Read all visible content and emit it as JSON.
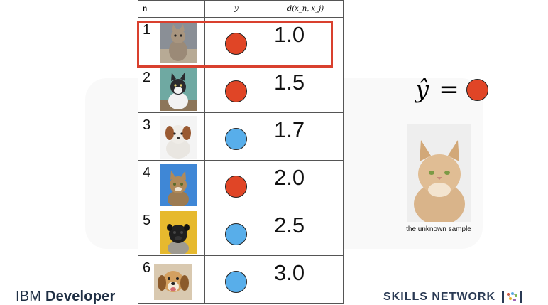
{
  "table": {
    "headers": {
      "n": "n",
      "y": "y",
      "d": "d(x_n, x_j)"
    },
    "rows": [
      {
        "n": "1",
        "image": "cat-icon",
        "label_color": "#e04526",
        "distance": "1.0"
      },
      {
        "n": "2",
        "image": "cat-icon",
        "label_color": "#e04526",
        "distance": "1.5"
      },
      {
        "n": "3",
        "image": "dog-icon",
        "label_color": "#58aeea",
        "distance": "1.7"
      },
      {
        "n": "4",
        "image": "cat-icon",
        "label_color": "#e04526",
        "distance": "2.0"
      },
      {
        "n": "5",
        "image": "dog-icon",
        "label_color": "#58aeea",
        "distance": "2.5"
      },
      {
        "n": "6",
        "image": "dog-icon",
        "label_color": "#58aeea",
        "distance": "3.0"
      }
    ]
  },
  "highlight_color": "#d9402e",
  "prediction": {
    "symbol": "ŷ",
    "equals": "=",
    "color": "#e04526"
  },
  "sample": {
    "image": "cat-icon",
    "caption": "the unknown sample"
  },
  "footer": {
    "ibm_prefix": "IBM",
    "ibm_name": "Developer",
    "skills_network": "SKILLS NETWORK"
  }
}
